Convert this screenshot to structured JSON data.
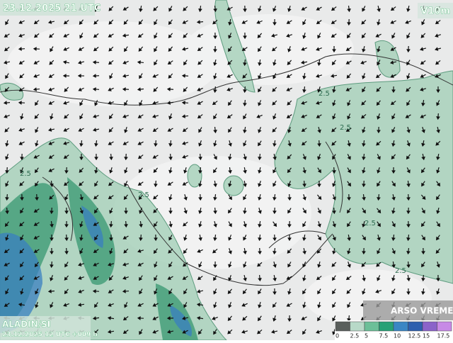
{
  "header": {
    "valid_time": "23.12.2025 21 UTC",
    "variable": "V10m"
  },
  "footer": {
    "model": "ALADIN/SI",
    "run": "23.12.2025 12 UTC +009 h",
    "logo": "ARSO VREME"
  },
  "legend": {
    "labels": [
      "0",
      "2.5",
      "5",
      "7.5",
      "10",
      "12.5",
      "15",
      "17.5"
    ],
    "colors": [
      "#5a5f5c",
      "#b8d9c8",
      "#6cbf98",
      "#27a176",
      "#3a86c4",
      "#2d5fae",
      "#8b63c9",
      "#c78ae6"
    ]
  },
  "contour_labels": [
    "2.5",
    "2.5",
    "2.5",
    "2.5",
    "2.5",
    "2.5"
  ]
}
